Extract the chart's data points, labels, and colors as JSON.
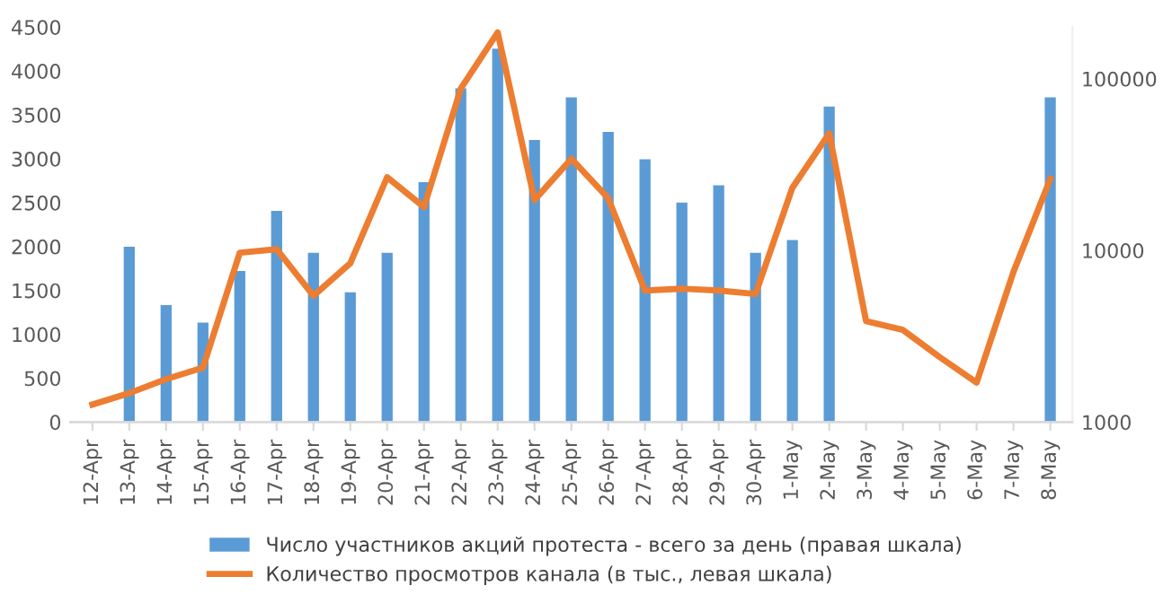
{
  "chart_data": {
    "type": "bar",
    "categories": [
      "12-Apr",
      "13-Apr",
      "14-Apr",
      "15-Apr",
      "16-Apr",
      "17-Apr",
      "18-Apr",
      "19-Apr",
      "20-Apr",
      "21-Apr",
      "22-Apr",
      "23-Apr",
      "24-Apr",
      "25-Apr",
      "26-Apr",
      "27-Apr",
      "28-Apr",
      "29-Apr",
      "30-Apr",
      "1-May",
      "2-May",
      "3-May",
      "4-May",
      "5-May",
      "6-May",
      "7-May",
      "8-May"
    ],
    "series": [
      {
        "name": "Число участников акций протеста - всего за день (правая шкала)",
        "axis": "y2",
        "color": "#5b9bd5",
        "values": [
          null,
          10500,
          4800,
          3800,
          7600,
          17000,
          9700,
          5700,
          9700,
          25000,
          88000,
          150000,
          44000,
          78000,
          49000,
          34000,
          19000,
          24000,
          9700,
          11500,
          69000,
          null,
          null,
          null,
          null,
          null,
          78000
        ]
      },
      {
        "name": "Количество просмотров канала (в тыс., левая шкала)",
        "type": "line",
        "color": "#ed7d31",
        "values": [
          200,
          330,
          490,
          620,
          1930,
          1970,
          1440,
          1810,
          2790,
          2450,
          3800,
          4440,
          2530,
          3000,
          2550,
          1500,
          1520,
          1500,
          1460,
          2670,
          3290,
          1150,
          1050,
          740,
          450,
          1710,
          2770
        ]
      }
    ],
    "ylim": [
      0,
      4500
    ],
    "yticks": [
      0,
      500,
      1000,
      1500,
      2000,
      2500,
      3000,
      3500,
      4000,
      4500
    ],
    "y2lim": [
      1000,
      200000
    ],
    "y2ticks": [
      1000,
      10000,
      100000
    ],
    "log": "y2",
    "grid": false,
    "legend": "bottom",
    "marker": "none",
    "line_style": "solid"
  }
}
